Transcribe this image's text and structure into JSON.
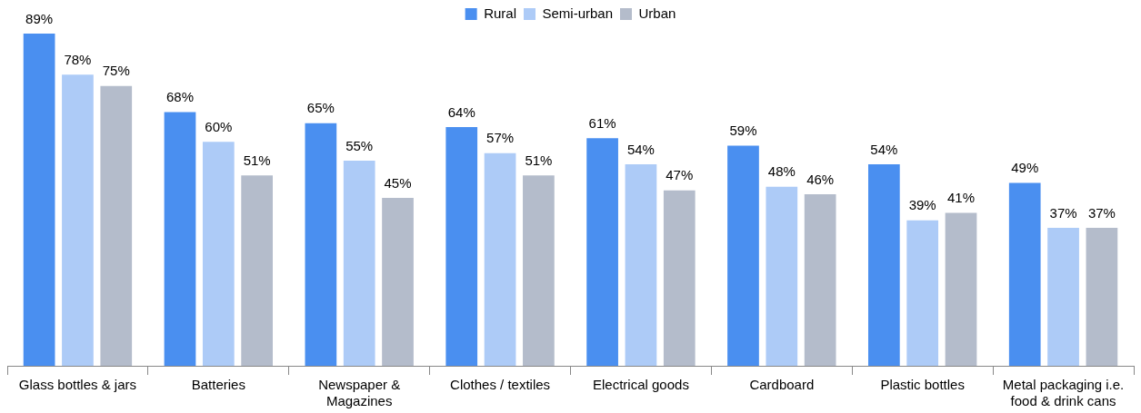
{
  "chart_data": {
    "type": "bar",
    "categories": [
      "Glass bottles & jars",
      "Batteries",
      "Newspaper & Magazines",
      "Clothes / textiles",
      "Electrical goods",
      "Cardboard",
      "Plastic bottles",
      "Metal packaging i.e. food & drink cans"
    ],
    "series": [
      {
        "name": "Rural",
        "color": "#4a8ff0",
        "values": [
          89,
          68,
          65,
          64,
          61,
          59,
          54,
          49
        ],
        "value_labels": [
          "89%",
          "68%",
          "65%",
          "64%",
          "61%",
          "59%",
          "54%",
          "49%"
        ]
      },
      {
        "name": "Semi-urban",
        "color": "#adcbf7",
        "values": [
          78,
          60,
          55,
          57,
          54,
          48,
          39,
          37
        ],
        "value_labels": [
          "78%",
          "60%",
          "55%",
          "57%",
          "54%",
          "48%",
          "39%",
          "37%"
        ]
      },
      {
        "name": "Urban",
        "color": "#b4bccb",
        "values": [
          75,
          51,
          45,
          51,
          47,
          46,
          41,
          37
        ],
        "value_labels": [
          "75%",
          "51%",
          "45%",
          "51%",
          "47%",
          "46%",
          "41%",
          "37%"
        ]
      }
    ],
    "legend": "top",
    "grid": false
  }
}
